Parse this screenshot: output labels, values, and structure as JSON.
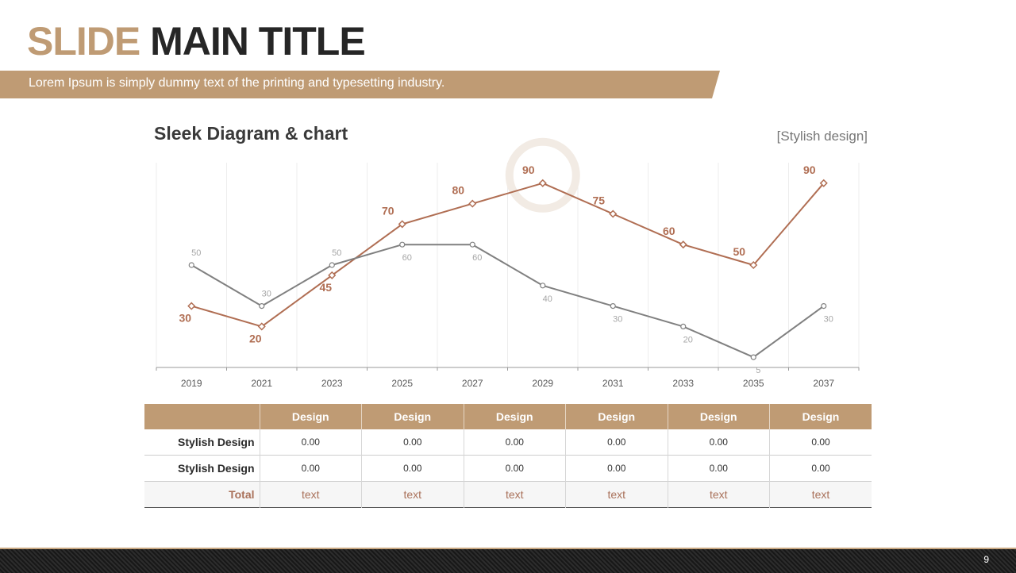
{
  "slide": {
    "title_part1": "SLIDE",
    "title_part2": "MAIN TITLE",
    "subtitle": "Lorem Ipsum is simply dummy text of the printing and typesetting industry.",
    "page_number": "9"
  },
  "chart_header": {
    "title": "Sleek Diagram & chart",
    "note": "[Stylish design]"
  },
  "chart_data": {
    "type": "line",
    "title": "Sleek Diagram & chart",
    "categories": [
      "2019",
      "2021",
      "2023",
      "2025",
      "2027",
      "2029",
      "2031",
      "2033",
      "2035",
      "2037"
    ],
    "ylim": [
      0,
      100
    ],
    "grid": "vertical",
    "series": [
      {
        "values": [
          30,
          20,
          45,
          70,
          80,
          90,
          75,
          60,
          50,
          90
        ],
        "color": "#b06e53",
        "marker": "diamond"
      },
      {
        "values": [
          50,
          30,
          50,
          60,
          60,
          40,
          30,
          20,
          5,
          30
        ],
        "color": "#808080",
        "marker": "circle"
      }
    ],
    "highlight": {
      "category": "2029",
      "color": "#f2ebe4"
    }
  },
  "table": {
    "headers": [
      "Design",
      "Design",
      "Design",
      "Design",
      "Design",
      "Design"
    ],
    "rows": [
      {
        "label": "Stylish Design",
        "cells": [
          "0.00",
          "0.00",
          "0.00",
          "0.00",
          "0.00",
          "0.00"
        ]
      },
      {
        "label": "Stylish Design",
        "cells": [
          "0.00",
          "0.00",
          "0.00",
          "0.00",
          "0.00",
          "0.00"
        ]
      }
    ],
    "total": {
      "label": "Total",
      "cells": [
        "text",
        "text",
        "text",
        "text",
        "text",
        "text"
      ]
    }
  },
  "colors": {
    "accent": "#bf9b74",
    "series_primary": "#b06e53",
    "series_secondary": "#808080",
    "footer": "#202020"
  }
}
